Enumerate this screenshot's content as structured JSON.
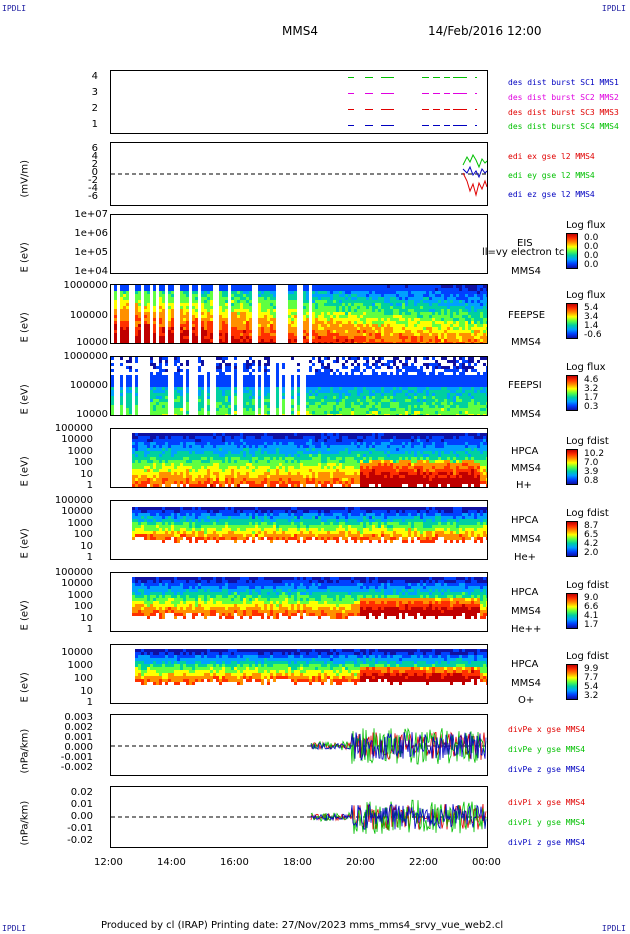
{
  "corners": {
    "tl": "IPDLI",
    "tr": "IPDLI",
    "bl": "IPDLI",
    "br": "IPDLI"
  },
  "header": {
    "title": "MMS4",
    "date": "14/Feb/2016 12:00"
  },
  "footer": {
    "text": "Produced by cl (IRAP)    Printing date: 27/Nov/2023    mms_mms4_srvy_vue_web2.cl"
  },
  "colors": {
    "red": "#e00000",
    "green": "#00c000",
    "blue": "#0000c0",
    "magenta": "#e000e0"
  },
  "chart_data": [
    {
      "type": "line",
      "id": "burst",
      "ylim": [
        0.5,
        4.5
      ],
      "yticks": [
        "4",
        "3",
        "2",
        "1"
      ],
      "series": [
        {
          "name": "des dist burst SC1 MMS1",
          "y": 4,
          "color": "#00c000"
        },
        {
          "name": "des dist burst SC2 MMS2",
          "y": 3,
          "color": "#e000e0"
        },
        {
          "name": "des dist burst SC3 MMS3",
          "y": 2,
          "color": "#e00000"
        },
        {
          "name": "des dist burst SC4 MMS4",
          "y": 1,
          "color": "#0000c0"
        }
      ]
    },
    {
      "type": "line",
      "id": "edi",
      "ylabel": "(mV/m)",
      "ylim": [
        -7,
        7
      ],
      "yticks": [
        "6",
        "4",
        "2",
        "0",
        "-2",
        "-4",
        "-6"
      ],
      "series": [
        {
          "name": "edi ex gse l2 MMS4"
        },
        {
          "name": "edi ey gse l2 MMS4"
        },
        {
          "name": "edi ez gse l2 MMS4"
        }
      ]
    },
    {
      "type": "heatmap",
      "id": "eis",
      "ylabel": "E (eV)",
      "yticks": [
        "1e+07",
        "1e+06",
        "1e+05",
        "1e+04"
      ],
      "labels": [
        "EIS",
        "MMS4"
      ],
      "overlay": "ll=vy electron tc",
      "cb_title": "Log flux",
      "cb_values": [
        "0.0",
        "0.0",
        "0.0",
        "0.0"
      ]
    },
    {
      "type": "heatmap",
      "id": "feepse",
      "ylabel": "E (eV)",
      "yticks": [
        "1000000",
        "100000",
        "10000"
      ],
      "labels": [
        "FEEPSE",
        "MMS4"
      ],
      "cb_title": "Log flux",
      "cb_values": [
        "5.4",
        "3.4",
        "1.4",
        "-0.6"
      ]
    },
    {
      "type": "heatmap",
      "id": "feepsi",
      "ylabel": "E (eV)",
      "yticks": [
        "1000000",
        "100000",
        "10000"
      ],
      "labels": [
        "FEEPSI",
        "MMS4"
      ],
      "cb_title": "Log flux",
      "cb_values": [
        "4.6",
        "3.2",
        "1.7",
        "0.3"
      ]
    },
    {
      "type": "heatmap",
      "id": "hpca_h",
      "ylabel": "E (eV)",
      "yticks": [
        "100000",
        "10000",
        "1000",
        "100",
        "10",
        "1"
      ],
      "labels": [
        "HPCA",
        "MMS4",
        "H+"
      ],
      "cb_title": "Log fdist",
      "cb_values": [
        "10.2",
        "7.0",
        "3.9",
        "0.8"
      ]
    },
    {
      "type": "heatmap",
      "id": "hpca_he",
      "ylabel": "E (eV)",
      "yticks": [
        "100000",
        "10000",
        "1000",
        "100",
        "10",
        "1"
      ],
      "labels": [
        "HPCA",
        "MMS4",
        "He+"
      ],
      "cb_title": "Log fdist",
      "cb_values": [
        "8.7",
        "6.5",
        "4.2",
        "2.0"
      ]
    },
    {
      "type": "heatmap",
      "id": "hpca_hepp",
      "ylabel": "E (eV)",
      "yticks": [
        "100000",
        "10000",
        "1000",
        "100",
        "10",
        "1"
      ],
      "labels": [
        "HPCA",
        "MMS4",
        "He++"
      ],
      "cb_title": "Log fdist",
      "cb_values": [
        "9.0",
        "6.6",
        "4.1",
        "1.7"
      ]
    },
    {
      "type": "heatmap",
      "id": "hpca_o",
      "ylabel": "E (eV)",
      "yticks": [
        "10000",
        "1000",
        "100",
        "10",
        "1"
      ],
      "labels": [
        "HPCA",
        "MMS4",
        "O+"
      ],
      "cb_title": "Log fdist",
      "cb_values": [
        "9.9",
        "7.7",
        "5.4",
        "3.2"
      ]
    },
    {
      "type": "line",
      "id": "divpe",
      "ylabel": "(nPa/km)",
      "ylim": [
        -0.003,
        0.003
      ],
      "yticks": [
        "0.003",
        "0.002",
        "0.001",
        "0.000",
        "-0.001",
        "-0.002"
      ],
      "series": [
        {
          "name": "divPe x gse MMS4"
        },
        {
          "name": "divPe y gse MMS4"
        },
        {
          "name": "divPe z gse MMS4"
        }
      ]
    },
    {
      "type": "line",
      "id": "divpi",
      "ylabel": "(nPa/km)",
      "ylim": [
        -0.025,
        0.025
      ],
      "yticks": [
        "0.02",
        "0.01",
        "0.00",
        "-0.01",
        "-0.02"
      ],
      "series": [
        {
          "name": "divPi x gse MMS4"
        },
        {
          "name": "divPi y gse MMS4"
        },
        {
          "name": "divPi z gse MMS4"
        }
      ]
    }
  ],
  "xaxis": {
    "ticks": [
      "12:00",
      "14:00",
      "16:00",
      "18:00",
      "20:00",
      "22:00",
      "00:00"
    ],
    "range_hours": [
      12,
      24
    ]
  }
}
